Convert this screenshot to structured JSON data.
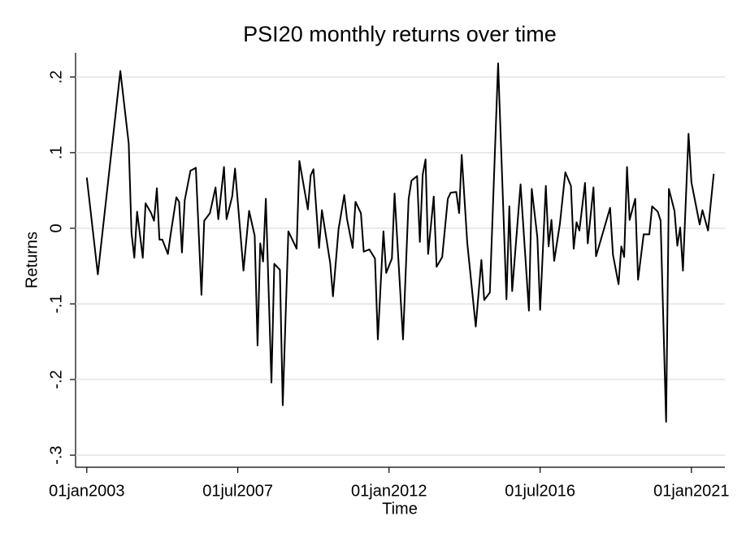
{
  "chart_data": {
    "type": "line",
    "title": "PSI20 monthly returns over time",
    "x_label": "Time",
    "y_label": "Returns",
    "color": "#000000",
    "grid": true,
    "xlim": [
      "2002-09-01",
      "2021-12-31"
    ],
    "ylim": [
      -0.316,
      0.232
    ],
    "xticks": [
      {
        "value": "2003-01-01",
        "label": "01jan2003"
      },
      {
        "value": "2007-07-01",
        "label": "01jul2007"
      },
      {
        "value": "2012-01-01",
        "label": "01jan2012"
      },
      {
        "value": "2016-07-01",
        "label": "01jul2016"
      },
      {
        "value": "2021-01-01",
        "label": "01jan2021"
      }
    ],
    "yticks": [
      {
        "value": -0.3,
        "label": "-.3"
      },
      {
        "value": -0.2,
        "label": "-.2"
      },
      {
        "value": -0.1,
        "label": "-.1"
      },
      0,
      {
        "value": 0.1,
        "label": ".1"
      },
      {
        "value": 0.2,
        "label": ".2"
      }
    ],
    "x": [
      "2003-01-01",
      "2003-05-01",
      "2004-01-01",
      "2004-04-01",
      "2004-05-01",
      "2004-06-01",
      "2004-07-01",
      "2004-09-01",
      "2004-10-01",
      "2004-12-01",
      "2005-01-01",
      "2005-02-01",
      "2005-03-01",
      "2005-04-01",
      "2005-06-01",
      "2005-07-01",
      "2005-09-01",
      "2005-10-01",
      "2005-11-01",
      "2005-12-01",
      "2006-02-01",
      "2006-04-01",
      "2006-06-01",
      "2006-07-01",
      "2006-09-01",
      "2006-11-01",
      "2006-12-01",
      "2007-02-01",
      "2007-03-01",
      "2007-05-01",
      "2007-06-01",
      "2007-09-01",
      "2007-11-01",
      "2008-01-01",
      "2008-02-01",
      "2008-03-01",
      "2008-04-01",
      "2008-05-01",
      "2008-07-01",
      "2008-08-01",
      "2008-10-01",
      "2008-11-01",
      "2009-01-01",
      "2009-04-01",
      "2009-05-01",
      "2009-08-01",
      "2009-09-01",
      "2009-10-01",
      "2009-12-01",
      "2010-01-01",
      "2010-04-01",
      "2010-05-01",
      "2010-07-01",
      "2010-09-01",
      "2010-10-01",
      "2010-12-01",
      "2011-01-01",
      "2011-03-01",
      "2011-04-01",
      "2011-06-01",
      "2011-08-01",
      "2011-09-01",
      "2011-11-01",
      "2011-12-01",
      "2012-02-01",
      "2012-03-01",
      "2012-06-01",
      "2012-08-01",
      "2012-09-01",
      "2012-11-01",
      "2012-12-01",
      "2013-01-01",
      "2013-02-01",
      "2013-03-01",
      "2013-05-01",
      "2013-06-01",
      "2013-08-01",
      "2013-10-01",
      "2013-11-01",
      "2014-01-01",
      "2014-02-01",
      "2014-03-01",
      "2014-05-01",
      "2014-08-01",
      "2014-10-01",
      "2014-11-01",
      "2015-01-01",
      "2015-04-01",
      "2015-07-01",
      "2015-08-01",
      "2015-09-01",
      "2015-12-01",
      "2016-03-01",
      "2016-04-01",
      "2016-06-01",
      "2016-07-01",
      "2016-09-01",
      "2016-10-01",
      "2016-11-01",
      "2016-12-01",
      "2017-02-01",
      "2017-04-01",
      "2017-06-01",
      "2017-07-01",
      "2017-08-01",
      "2017-09-01",
      "2017-11-01",
      "2017-12-01",
      "2018-02-01",
      "2018-03-01",
      "2018-08-01",
      "2018-09-01",
      "2018-11-01",
      "2018-12-01",
      "2019-01-01",
      "2019-02-01",
      "2019-03-01",
      "2019-05-01",
      "2019-06-01",
      "2019-08-01",
      "2019-10-01",
      "2019-11-01",
      "2020-01-01",
      "2020-02-01",
      "2020-04-01",
      "2020-05-01",
      "2020-07-01",
      "2020-08-01",
      "2020-09-01",
      "2020-10-01",
      "2020-12-01",
      "2021-01-01",
      "2021-04-01",
      "2021-05-01",
      "2021-07-01",
      "2021-09-01"
    ],
    "values": [
      0.067,
      -0.061,
      0.208,
      0.112,
      -0.006,
      -0.039,
      0.022,
      -0.039,
      0.033,
      0.02,
      0.01,
      0.053,
      -0.015,
      -0.015,
      -0.034,
      -0.008,
      0.041,
      0.035,
      -0.032,
      0.037,
      0.076,
      0.08,
      -0.088,
      0.01,
      0.02,
      0.054,
      0.012,
      0.081,
      0.012,
      0.042,
      0.079,
      -0.056,
      0.023,
      -0.01,
      -0.155,
      -0.02,
      -0.044,
      0.039,
      -0.204,
      -0.047,
      -0.055,
      -0.234,
      -0.004,
      -0.027,
      0.089,
      0.025,
      0.07,
      0.078,
      -0.026,
      0.024,
      -0.046,
      -0.09,
      -0.001,
      0.044,
      0.012,
      -0.026,
      0.035,
      0.02,
      -0.031,
      -0.028,
      -0.04,
      -0.147,
      -0.004,
      -0.059,
      -0.04,
      0.046,
      -0.147,
      0.039,
      0.063,
      0.069,
      -0.018,
      0.071,
      0.091,
      -0.034,
      0.042,
      -0.051,
      -0.038,
      0.039,
      0.047,
      0.048,
      0.02,
      0.097,
      -0.02,
      -0.13,
      -0.042,
      -0.095,
      -0.085,
      0.218,
      -0.094,
      0.029,
      -0.083,
      0.058,
      -0.109,
      0.052,
      -0.012,
      -0.108,
      0.056,
      -0.024,
      0.011,
      -0.043,
      0.006,
      0.074,
      0.056,
      -0.027,
      0.008,
      -0.003,
      0.06,
      -0.02,
      0.054,
      -0.037,
      0.027,
      -0.035,
      -0.074,
      -0.024,
      -0.038,
      0.081,
      0.011,
      0.039,
      -0.068,
      -0.008,
      -0.008,
      0.029,
      0.022,
      0.01,
      -0.256,
      0.052,
      0.023,
      -0.023,
      0.001,
      -0.056,
      0.125,
      0.061,
      0.005,
      0.024,
      -0.003,
      0.072
    ]
  }
}
